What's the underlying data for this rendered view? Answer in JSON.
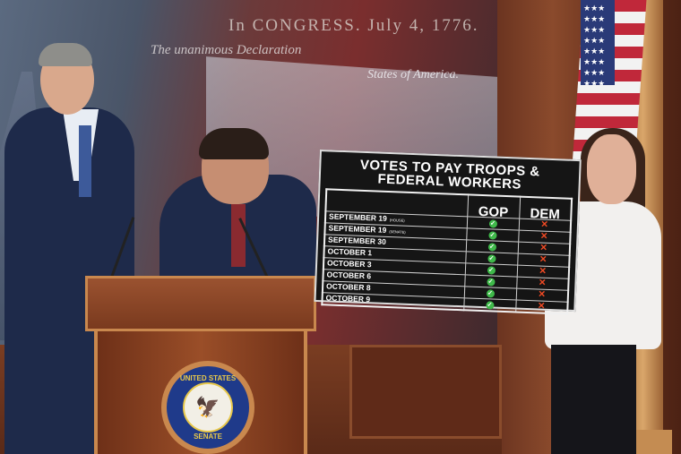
{
  "backdrop": {
    "heading": "In CONGRESS. July 4, 1776.",
    "subheading": "The unanimous Declaration",
    "subheading_end": "States of America."
  },
  "board": {
    "title": "VOTES TO PAY TROOPS & FEDERAL WORKERS",
    "columns": [
      "GOP",
      "DEM"
    ],
    "rows": [
      {
        "date": "SEPTEMBER 19",
        "note": "(HOUSE)",
        "gop": "check",
        "dem": "x"
      },
      {
        "date": "SEPTEMBER 19",
        "note": "(SENATE)",
        "gop": "check",
        "dem": "x"
      },
      {
        "date": "SEPTEMBER 30",
        "note": "",
        "gop": "check",
        "dem": "x"
      },
      {
        "date": "OCTOBER 1",
        "note": "",
        "gop": "check",
        "dem": "x"
      },
      {
        "date": "OCTOBER 3",
        "note": "",
        "gop": "check",
        "dem": "x"
      },
      {
        "date": "OCTOBER 6",
        "note": "",
        "gop": "check",
        "dem": "x"
      },
      {
        "date": "OCTOBER 8",
        "note": "",
        "gop": "check",
        "dem": "x"
      },
      {
        "date": "OCTOBER 9",
        "note": "",
        "gop": "check",
        "dem": "x"
      }
    ],
    "check_color": "#3fb94a",
    "x_color": "#f04a24"
  },
  "podium": {
    "seal_top": "UNITED STATES",
    "seal_bottom": "SENATE"
  }
}
